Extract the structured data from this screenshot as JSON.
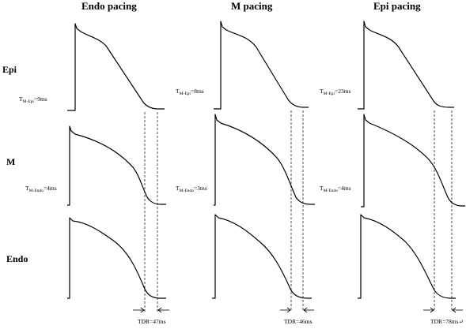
{
  "columns": [
    {
      "title": "Endo pacing",
      "transmural": [
        {
          "row": "Epi",
          "label": "T",
          "sub": "M-Epi",
          "value": "=9ms"
        },
        {
          "row": "M",
          "label": "T",
          "sub": "M-Endo",
          "value": "=4ms"
        }
      ],
      "tdr": "TDR=47ms"
    },
    {
      "title": "M pacing",
      "transmural": [
        {
          "row": "Epi",
          "label": "T",
          "sub": "M-Epi",
          "value": "=8ms"
        },
        {
          "row": "M",
          "label": "T",
          "sub": "M-Endo",
          "value": "=3ms"
        }
      ],
      "tdr": "TDR=46ms"
    },
    {
      "title": "Epi pacing",
      "transmural": [
        {
          "row": "Epi",
          "label": "T",
          "sub": "M-Epi",
          "value": "=23ms"
        },
        {
          "row": "M",
          "label": "T",
          "sub": "M-Endo",
          "value": "=4ms"
        }
      ],
      "tdr": "TDR=78ms↵"
    }
  ],
  "rows": [
    "Epi",
    "M",
    "Endo"
  ]
}
